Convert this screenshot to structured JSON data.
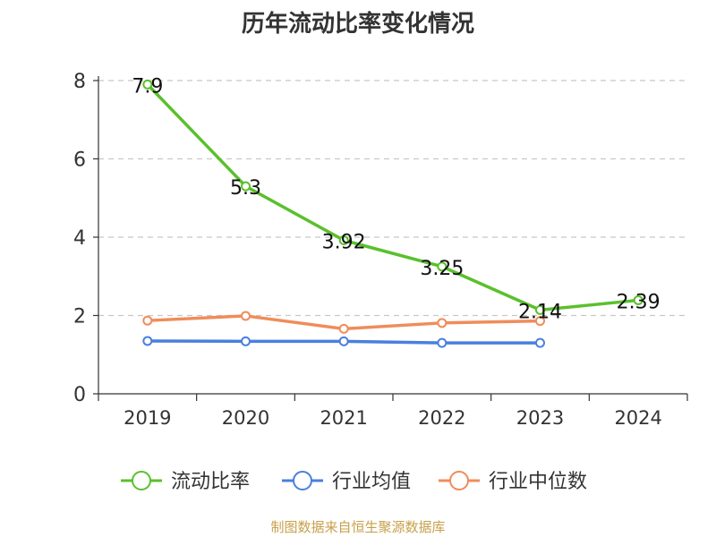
{
  "chart_data": {
    "type": "line",
    "title": "历年流动比率变化情况",
    "categories": [
      "2019",
      "2020",
      "2021",
      "2022",
      "2023",
      "2024"
    ],
    "ylim": [
      0,
      8
    ],
    "yticks": [
      0,
      2,
      4,
      6,
      8
    ],
    "grid": true,
    "legend_position": "bottom",
    "series": [
      {
        "name": "流动比率",
        "color": "#5ac02c",
        "values": [
          7.9,
          5.3,
          3.92,
          3.25,
          2.14,
          2.39
        ],
        "labels": [
          "7.9",
          "5.3",
          "3.92",
          "3.25",
          "2.14",
          "2.39"
        ],
        "show_labels": true
      },
      {
        "name": "行业均值",
        "color": "#4a7fde",
        "values": [
          1.35,
          1.34,
          1.34,
          1.3,
          1.3,
          null
        ],
        "show_labels": false
      },
      {
        "name": "行业中位数",
        "color": "#f08c5a",
        "values": [
          1.87,
          1.99,
          1.66,
          1.81,
          1.86,
          null
        ],
        "show_labels": false
      }
    ]
  },
  "footer": "制图数据来自恒生聚源数据库"
}
